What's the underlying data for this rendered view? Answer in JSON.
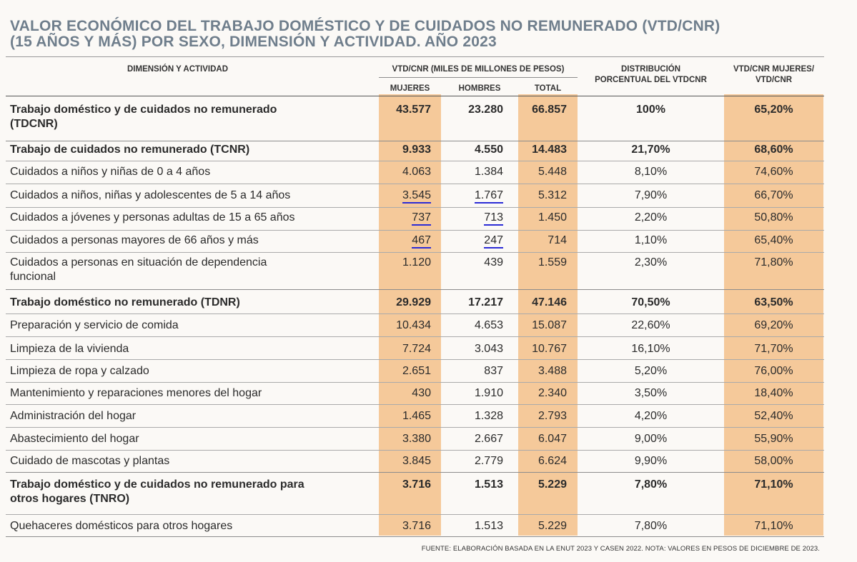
{
  "title": {
    "line1": "VALOR ECONÓMICO DEL TRABAJO DOMÉSTICO Y DE CUIDADOS NO REMUNERADO (VTD/CNR)",
    "line2": "(15 AÑOS Y MÁS) POR SEXO, DIMENSIÓN Y ACTIVIDAD. AÑO 2023"
  },
  "headers": {
    "dimension": "DIMENSIÓN Y ACTIVIDAD",
    "group": "VTD/CNR (MILES DE MILLONES DE PESOS)",
    "mujeres": "MUJERES",
    "hombres": "HOMBRES",
    "total": "TOTAL",
    "distribucion_1": "DISTRIBUCIÓN",
    "distribucion_2": "PORCENTUAL DEL VTDCNR",
    "ratio_1": "VTD/CNR MUJERES/",
    "ratio_2": "VTD/CNR"
  },
  "rows": [
    {
      "label1": "Trabajo doméstico y de cuidados no remunerado",
      "label2": "(TDCNR)",
      "mujeres": "43.577",
      "hombres": "23.280",
      "total": "66.857",
      "distribucion": "100%",
      "ratio": "65,20%",
      "bold": true
    },
    {
      "label1": "Trabajo de cuidados no remunerado (TCNR)",
      "label2": "",
      "mujeres": "9.933",
      "hombres": "4.550",
      "total": "14.483",
      "distribucion": "21,70%",
      "ratio": "68,60%",
      "bold": true
    },
    {
      "label1": "Cuidados a niños y niñas de 0 a 4 años",
      "label2": "",
      "mujeres": "4.063",
      "hombres": "1.384",
      "total": "5.448",
      "distribucion": "8,10%",
      "ratio": "74,60%",
      "bold": false
    },
    {
      "label1": "Cuidados a niños, niñas y adolescentes de 5 a 14 años",
      "label2": "",
      "mujeres": "3.545",
      "hombres": "1.767",
      "total": "5.312",
      "distribucion": "7,90%",
      "ratio": "66,70%",
      "bold": false
    },
    {
      "label1": "Cuidados a jóvenes y personas adultas de 15 a 65 años",
      "label2": "",
      "mujeres": "737",
      "hombres": "713",
      "total": "1.450",
      "distribucion": "2,20%",
      "ratio": "50,80%",
      "bold": false
    },
    {
      "label1": "Cuidados a personas mayores de 66 años y más",
      "label2": "",
      "mujeres": "467",
      "hombres": "247",
      "total": "714",
      "distribucion": "1,10%",
      "ratio": "65,40%",
      "bold": false
    },
    {
      "label1": "Cuidados a personas en situación de dependencia",
      "label2": "funcional",
      "mujeres": "1.120",
      "hombres": "439",
      "total": "1.559",
      "distribucion": "2,30%",
      "ratio": "71,80%",
      "bold": false
    },
    {
      "label1": "Trabajo doméstico no remunerado (TDNR)",
      "label2": "",
      "mujeres": "29.929",
      "hombres": "17.217",
      "total": "47.146",
      "distribucion": "70,50%",
      "ratio": "63,50%",
      "bold": true
    },
    {
      "label1": "Preparación y servicio de comida",
      "label2": "",
      "mujeres": "10.434",
      "hombres": "4.653",
      "total": "15.087",
      "distribucion": "22,60%",
      "ratio": "69,20%",
      "bold": false
    },
    {
      "label1": "Limpieza de la vivienda",
      "label2": "",
      "mujeres": "7.724",
      "hombres": "3.043",
      "total": "10.767",
      "distribucion": "16,10%",
      "ratio": "71,70%",
      "bold": false
    },
    {
      "label1": "Limpieza de ropa y calzado",
      "label2": "",
      "mujeres": "2.651",
      "hombres": "837",
      "total": "3.488",
      "distribucion": "5,20%",
      "ratio": "76,00%",
      "bold": false
    },
    {
      "label1": "Mantenimiento y reparaciones menores del hogar",
      "label2": "",
      "mujeres": "430",
      "hombres": "1.910",
      "total": "2.340",
      "distribucion": "3,50%",
      "ratio": "18,40%",
      "bold": false
    },
    {
      "label1": "Administración del hogar",
      "label2": "",
      "mujeres": "1.465",
      "hombres": "1.328",
      "total": "2.793",
      "distribucion": "4,20%",
      "ratio": "52,40%",
      "bold": false
    },
    {
      "label1": "Abastecimiento del hogar",
      "label2": "",
      "mujeres": "3.380",
      "hombres": "2.667",
      "total": "6.047",
      "distribucion": "9,00%",
      "ratio": "55,90%",
      "bold": false
    },
    {
      "label1": "Cuidado de mascotas y plantas",
      "label2": "",
      "mujeres": "3.845",
      "hombres": "2.779",
      "total": "6.624",
      "distribucion": "9,90%",
      "ratio": "58,00%",
      "bold": false
    },
    {
      "label1": "Trabajo doméstico y de cuidados no remunerado para",
      "label2": "otros hogares (TNRO)",
      "mujeres": "3.716",
      "hombres": "1.513",
      "total": "5.229",
      "distribucion": "7,80%",
      "ratio": "71,10%",
      "bold": true
    },
    {
      "label1": "Quehaceres domésticos para otros hogares",
      "label2": "",
      "mujeres": "3.716",
      "hombres": "1.513",
      "total": "5.229",
      "distribucion": "7,80%",
      "ratio": "71,10%",
      "bold": false
    }
  ],
  "footer": "FUENTE: ELABORACIÓN BASADA EN LA ENUT 2023 Y CASEN 2022. NOTA: VALORES EN PESOS DE DICIEMBRE DE 2023.",
  "colors": {
    "highlight_column": "#f5c99a",
    "title": "#6f7e8c",
    "underline": "#2b2bd6"
  }
}
